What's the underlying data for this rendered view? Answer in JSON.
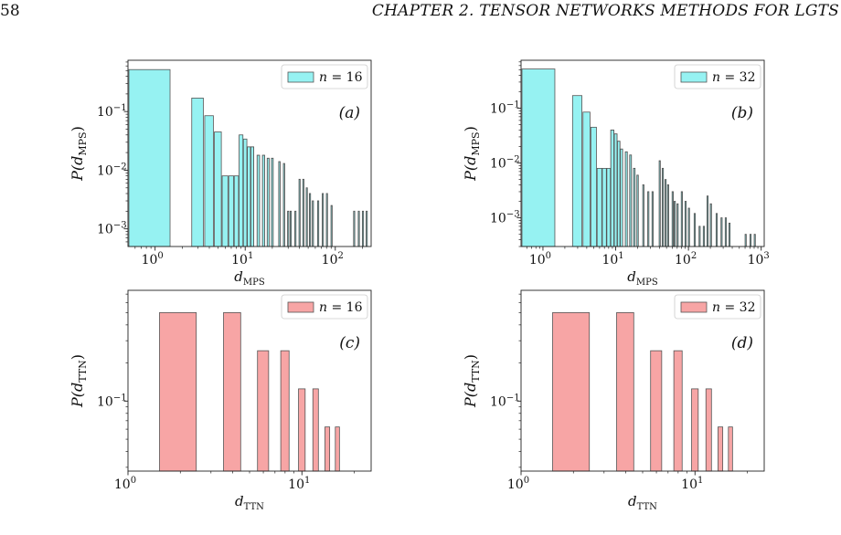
{
  "page": {
    "page_number": "58",
    "running_head": "CHAPTER 2.  TENSOR NETWORKS METHODS FOR LGTS"
  },
  "colors": {
    "cyan": "#96f2f2",
    "pink": "#f7a5a5",
    "edge": "#555555"
  },
  "chart_data": [
    {
      "id": "a",
      "type": "bar",
      "panel_label": "(a)",
      "xlabel_base": "d",
      "xlabel_sub": "MPS",
      "ylabel_base": "P(d",
      "ylabel_sub": "MPS",
      "ylabel_close": ")",
      "xscale": "log",
      "yscale": "log",
      "xlim": [
        0.5,
        250
      ],
      "ylim": [
        0.0005,
        0.75
      ],
      "xticks": [
        {
          "v": 1,
          "b": "10",
          "e": "0"
        },
        {
          "v": 10,
          "b": "10",
          "e": "1"
        },
        {
          "v": 100,
          "b": "10",
          "e": "2"
        }
      ],
      "yticks": [
        {
          "v": 0.001,
          "b": "10",
          "e": "−3"
        },
        {
          "v": 0.01,
          "b": "10",
          "e": "−2"
        },
        {
          "v": 0.1,
          "b": "10",
          "e": "−1"
        }
      ],
      "legend": "n = 16",
      "legend_n": "n",
      "legend_val": "= 16",
      "color": "cyan",
      "bars": [
        [
          1,
          0.52
        ],
        [
          3,
          0.17
        ],
        [
          4,
          0.085
        ],
        [
          5,
          0.045
        ],
        [
          6,
          0.008
        ],
        [
          7,
          0.008
        ],
        [
          8,
          0.008
        ],
        [
          9,
          0.04
        ],
        [
          10,
          0.034
        ],
        [
          11,
          0.025
        ],
        [
          12,
          0.025
        ],
        [
          14,
          0.018
        ],
        [
          16,
          0.018
        ],
        [
          18,
          0.016
        ],
        [
          20,
          0.016
        ],
        [
          24,
          0.014
        ],
        [
          27,
          0.013
        ],
        [
          30,
          0.002
        ],
        [
          32,
          0.002
        ],
        [
          36,
          0.002
        ],
        [
          40,
          0.007
        ],
        [
          44,
          0.007
        ],
        [
          48,
          0.005
        ],
        [
          52,
          0.004
        ],
        [
          56,
          0.003
        ],
        [
          64,
          0.003
        ],
        [
          72,
          0.004
        ],
        [
          80,
          0.004
        ],
        [
          90,
          0.0025
        ],
        [
          160,
          0.002
        ],
        [
          180,
          0.002
        ],
        [
          200,
          0.002
        ],
        [
          220,
          0.002
        ]
      ]
    },
    {
      "id": "b",
      "type": "bar",
      "panel_label": "(b)",
      "xlabel_base": "d",
      "xlabel_sub": "MPS",
      "ylabel_base": "P(d",
      "ylabel_sub": "MPS",
      "ylabel_close": ")",
      "xscale": "log",
      "yscale": "log",
      "xlim": [
        0.5,
        1100
      ],
      "ylim": [
        0.0003,
        0.75
      ],
      "xticks": [
        {
          "v": 1,
          "b": "10",
          "e": "0"
        },
        {
          "v": 10,
          "b": "10",
          "e": "1"
        },
        {
          "v": 100,
          "b": "10",
          "e": "2"
        },
        {
          "v": 1000,
          "b": "10",
          "e": "3"
        }
      ],
      "yticks": [
        {
          "v": 0.001,
          "b": "10",
          "e": "−3"
        },
        {
          "v": 0.01,
          "b": "10",
          "e": "−2"
        },
        {
          "v": 0.1,
          "b": "10",
          "e": "−1"
        }
      ],
      "legend": "n = 32",
      "legend_n": "n",
      "legend_val": "= 32",
      "color": "cyan",
      "bars": [
        [
          1,
          0.52
        ],
        [
          3,
          0.17
        ],
        [
          4,
          0.085
        ],
        [
          5,
          0.045
        ],
        [
          6,
          0.008
        ],
        [
          7,
          0.008
        ],
        [
          8,
          0.008
        ],
        [
          9,
          0.04
        ],
        [
          10,
          0.034
        ],
        [
          11,
          0.025
        ],
        [
          12,
          0.018
        ],
        [
          14,
          0.016
        ],
        [
          16,
          0.014
        ],
        [
          18,
          0.008
        ],
        [
          20,
          0.006
        ],
        [
          24,
          0.004
        ],
        [
          28,
          0.003
        ],
        [
          32,
          0.003
        ],
        [
          40,
          0.011
        ],
        [
          44,
          0.008
        ],
        [
          48,
          0.005
        ],
        [
          52,
          0.004
        ],
        [
          60,
          0.003
        ],
        [
          64,
          0.002
        ],
        [
          70,
          0.0018
        ],
        [
          80,
          0.003
        ],
        [
          90,
          0.002
        ],
        [
          100,
          0.0015
        ],
        [
          120,
          0.0012
        ],
        [
          140,
          0.0007
        ],
        [
          160,
          0.0007
        ],
        [
          180,
          0.0025
        ],
        [
          200,
          0.0018
        ],
        [
          240,
          0.0012
        ],
        [
          280,
          0.001
        ],
        [
          320,
          0.001
        ],
        [
          360,
          0.0008
        ],
        [
          600,
          0.0005
        ],
        [
          700,
          0.0005
        ],
        [
          800,
          0.0005
        ]
      ]
    },
    {
      "id": "c",
      "type": "bar",
      "panel_label": "(c)",
      "xlabel_base": "d",
      "xlabel_sub": "TTN",
      "ylabel_base": "P(d",
      "ylabel_sub": "TTN",
      "ylabel_close": ")",
      "xscale": "log",
      "yscale": "log",
      "xlim": [
        1,
        25
      ],
      "ylim": [
        0.028,
        0.75
      ],
      "xticks": [
        {
          "v": 1,
          "b": "10",
          "e": "0"
        },
        {
          "v": 10,
          "b": "10",
          "e": "1"
        }
      ],
      "yticks": [
        {
          "v": 0.1,
          "b": "10",
          "e": "−1"
        }
      ],
      "legend": "n = 16",
      "legend_n": "n",
      "legend_val": "= 16",
      "color": "pink",
      "bars": [
        [
          2,
          0.5
        ],
        [
          4,
          0.5
        ],
        [
          6,
          0.25
        ],
        [
          8,
          0.25
        ],
        [
          10,
          0.125
        ],
        [
          12,
          0.125
        ],
        [
          14,
          0.0625
        ],
        [
          16,
          0.0625
        ]
      ]
    },
    {
      "id": "d",
      "type": "bar",
      "panel_label": "(d)",
      "xlabel_base": "d",
      "xlabel_sub": "TTN",
      "ylabel_base": "P(d",
      "ylabel_sub": "TTN",
      "ylabel_close": ")",
      "xscale": "log",
      "yscale": "log",
      "xlim": [
        1,
        25
      ],
      "ylim": [
        0.028,
        0.75
      ],
      "xticks": [
        {
          "v": 1,
          "b": "10",
          "e": "0"
        },
        {
          "v": 10,
          "b": "10",
          "e": "1"
        }
      ],
      "yticks": [
        {
          "v": 0.1,
          "b": "10",
          "e": "−1"
        }
      ],
      "legend": "n = 32",
      "legend_n": "n",
      "legend_val": "= 32",
      "color": "pink",
      "bars": [
        [
          2,
          0.5
        ],
        [
          4,
          0.5
        ],
        [
          6,
          0.25
        ],
        [
          8,
          0.25
        ],
        [
          10,
          0.125
        ],
        [
          12,
          0.125
        ],
        [
          14,
          0.0625
        ],
        [
          16,
          0.0625
        ]
      ]
    }
  ]
}
